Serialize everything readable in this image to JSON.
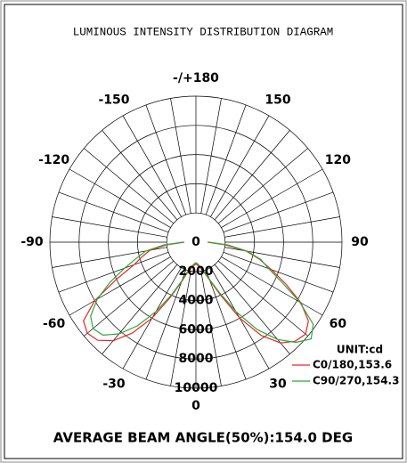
{
  "chart_data": {
    "type": "polar",
    "title": "LUMINOUS INTENSITY DISTRIBUTION DIAGRAM",
    "footer": "AVERAGE BEAM ANGLE(50%):154.0 DEG",
    "unit_label": "UNIT:cd",
    "rlim": [
      0,
      10000
    ],
    "rticks": [
      0,
      2000,
      4000,
      6000,
      8000,
      10000
    ],
    "thetaticks": [
      {
        "value": 180,
        "label": "-/+180"
      },
      150,
      120,
      90,
      60,
      30,
      0,
      -30,
      -60,
      -90,
      -120,
      -150
    ],
    "thetagrid": [
      0,
      10,
      20,
      30,
      40,
      50,
      60,
      70,
      80,
      90,
      100,
      110,
      120,
      130,
      140,
      150,
      160,
      170,
      180,
      -170,
      -160,
      -150,
      -140,
      -130,
      -120,
      -110,
      -100,
      -90,
      -80,
      -70,
      -60,
      -50,
      -40,
      -30,
      -20,
      -10
    ],
    "theta": [
      -90,
      -85,
      -80,
      -75,
      -70,
      -65,
      -60,
      -55,
      -50,
      -45,
      -40,
      -35,
      -30,
      -25,
      -20,
      -15,
      -10,
      -5,
      0,
      5,
      10,
      15,
      20,
      25,
      30,
      35,
      40,
      45,
      50,
      55,
      60,
      65,
      70,
      75,
      80,
      85,
      90
    ],
    "series": [
      {
        "name": "C0/180,153.6",
        "color": "#e8262a",
        "values": [
          800,
          2000,
          3200,
          3800,
          4500,
          6000,
          8000,
          9400,
          9700,
          9500,
          8800,
          7600,
          6000,
          4200,
          2900,
          2100,
          1800,
          1600,
          1500,
          1600,
          1800,
          2100,
          2800,
          4000,
          6000,
          7800,
          9000,
          9600,
          9800,
          9400,
          8300,
          6800,
          5500,
          4500,
          3500,
          2000,
          800
        ]
      },
      {
        "name": "C90/270,154.3",
        "color": "#2ca83a",
        "values": [
          900,
          2200,
          3500,
          4200,
          5200,
          6500,
          7800,
          8800,
          9200,
          9000,
          8200,
          7000,
          5500,
          4000,
          2800,
          2000,
          1700,
          1500,
          1400,
          1500,
          1700,
          2000,
          2700,
          3800,
          5500,
          7300,
          8700,
          9700,
          10300,
          9800,
          8200,
          6500,
          5300,
          4600,
          3600,
          2200,
          900
        ]
      }
    ]
  }
}
